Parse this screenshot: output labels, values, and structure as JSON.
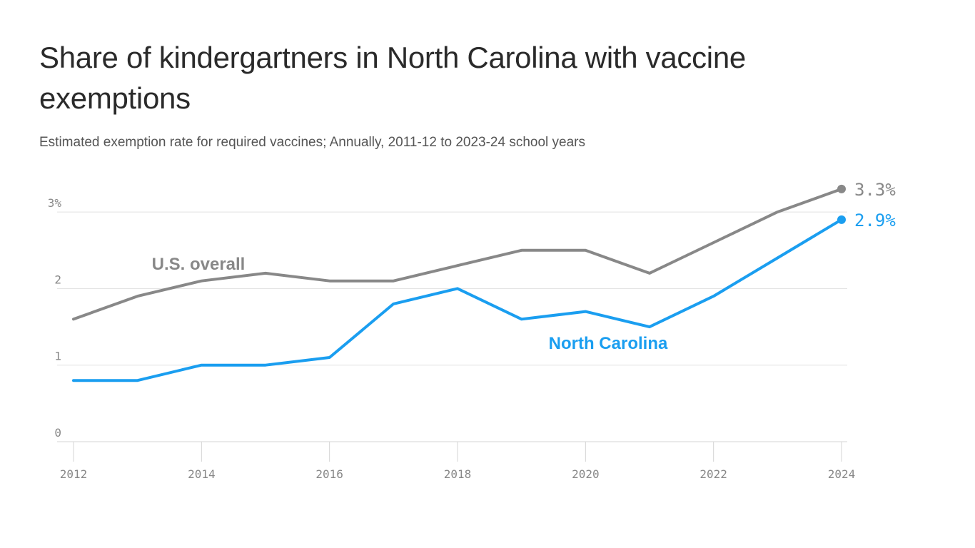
{
  "chart_data": {
    "type": "line",
    "title": "Share of kindergartners in North Carolina with vaccine exemptions",
    "subtitle": "Estimated exemption rate for required vaccines; Annually, 2011-12 to 2023-24 school years",
    "x": [
      2012,
      2013,
      2014,
      2015,
      2016,
      2017,
      2018,
      2019,
      2020,
      2021,
      2022,
      2023,
      2024
    ],
    "xticks": [
      "2012",
      "2014",
      "2016",
      "2018",
      "2020",
      "2022",
      "2024"
    ],
    "yticks": [
      "0",
      "1",
      "2",
      "3%"
    ],
    "ylim": [
      0,
      3.3
    ],
    "grid": true,
    "series": [
      {
        "name": "U.S. overall",
        "color": "#888888",
        "values": [
          1.6,
          1.9,
          2.1,
          2.2,
          2.1,
          2.1,
          2.3,
          2.5,
          2.5,
          2.2,
          2.6,
          3.0,
          3.3
        ],
        "end_label": "3.3%"
      },
      {
        "name": "North Carolina",
        "color": "#1a9ef0",
        "values": [
          0.8,
          0.8,
          1.0,
          1.0,
          1.1,
          1.8,
          2.0,
          1.6,
          1.7,
          1.5,
          1.9,
          2.4,
          2.9
        ],
        "end_label": "2.9%"
      }
    ]
  }
}
